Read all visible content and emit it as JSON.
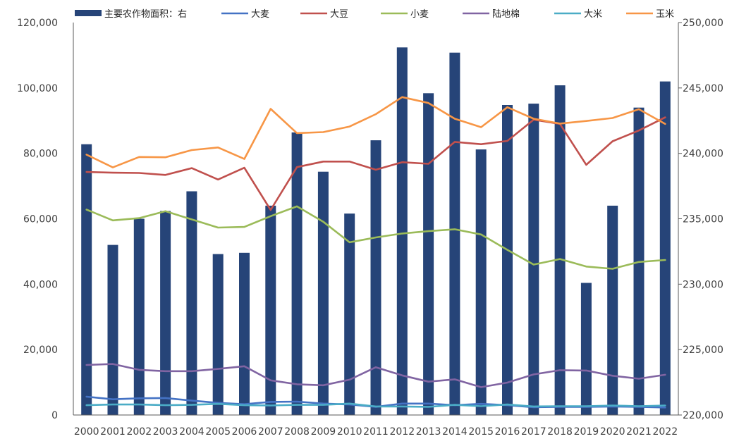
{
  "chart_data": {
    "type": "bar",
    "categories": [
      "2000",
      "2001",
      "2002",
      "2003",
      "2004",
      "2005",
      "2006",
      "2007",
      "2008",
      "2009",
      "2010",
      "2011",
      "2012",
      "2013",
      "2014",
      "2015",
      "2016",
      "2017",
      "2018",
      "2019",
      "2020",
      "2021",
      "2022"
    ],
    "series": [
      {
        "name": "主要农作物面积：右",
        "type": "bar",
        "axis": "right",
        "color": "#264478",
        "values": [
          240700,
          233000,
          235000,
          235600,
          237100,
          232300,
          232400,
          236000,
          241600,
          238600,
          235400,
          241000,
          248100,
          244600,
          247700,
          240300,
          243700,
          243800,
          245200,
          230100,
          236000,
          243500,
          245500
        ]
      },
      {
        "name": "大麦",
        "type": "line",
        "axis": "left",
        "color": "#4472C4",
        "values": [
          5600,
          4800,
          5100,
          5200,
          4400,
          3700,
          3300,
          4000,
          4100,
          3500,
          3200,
          2500,
          3500,
          3500,
          3000,
          3400,
          3000,
          2400,
          2500,
          2500,
          2600,
          2500,
          2300
        ]
      },
      {
        "name": "大豆",
        "type": "line",
        "axis": "left",
        "color": "#C0504D",
        "values": [
          74300,
          74100,
          74000,
          73400,
          75500,
          72000,
          75600,
          62700,
          75800,
          77500,
          77500,
          75000,
          77300,
          76800,
          83500,
          82800,
          83800,
          90300,
          89000,
          76500,
          83700,
          87000,
          91000
        ]
      },
      {
        "name": "小麦",
        "type": "line",
        "axis": "left",
        "color": "#9BBB59",
        "values": [
          62800,
          59500,
          60200,
          62300,
          59800,
          57300,
          57500,
          60800,
          63800,
          59100,
          52800,
          54300,
          55500,
          56200,
          56800,
          55200,
          50500,
          46000,
          47700,
          45400,
          44700,
          46800,
          47400
        ]
      },
      {
        "name": "陆地棉",
        "type": "line",
        "axis": "left",
        "color": "#8064A2",
        "values": [
          15300,
          15600,
          13800,
          13400,
          13400,
          14100,
          14900,
          10600,
          9400,
          9100,
          10800,
          14600,
          12100,
          10200,
          10900,
          8500,
          9900,
          12400,
          13700,
          13600,
          12000,
          11100,
          12300
        ]
      },
      {
        "name": "大米",
        "type": "line",
        "axis": "left",
        "color": "#4BACC6",
        "values": [
          3000,
          3200,
          3200,
          3000,
          3100,
          3400,
          3000,
          2900,
          3100,
          3100,
          3500,
          2600,
          2600,
          2500,
          3100,
          2700,
          3200,
          2600,
          2700,
          2700,
          2900,
          2700,
          2900
        ]
      },
      {
        "name": "玉米",
        "type": "line",
        "axis": "left",
        "color": "#F79646",
        "values": [
          79600,
          75700,
          78900,
          78800,
          81000,
          81800,
          78300,
          93600,
          86200,
          86500,
          88200,
          92000,
          97200,
          95400,
          90600,
          88000,
          94100,
          90600,
          89100,
          89900,
          90800,
          93500,
          89000
        ]
      }
    ],
    "yaxis_left": {
      "min": 0,
      "max": 120000,
      "ticks": [
        "0",
        "20,000",
        "40,000",
        "60,000",
        "80,000",
        "100,000",
        "120,000"
      ]
    },
    "yaxis_right": {
      "min": 220000,
      "max": 250000,
      "ticks": [
        "220,000",
        "225,000",
        "230,000",
        "235,000",
        "240,000",
        "245,000",
        "250,000"
      ]
    },
    "grid": false,
    "legend": "top"
  }
}
